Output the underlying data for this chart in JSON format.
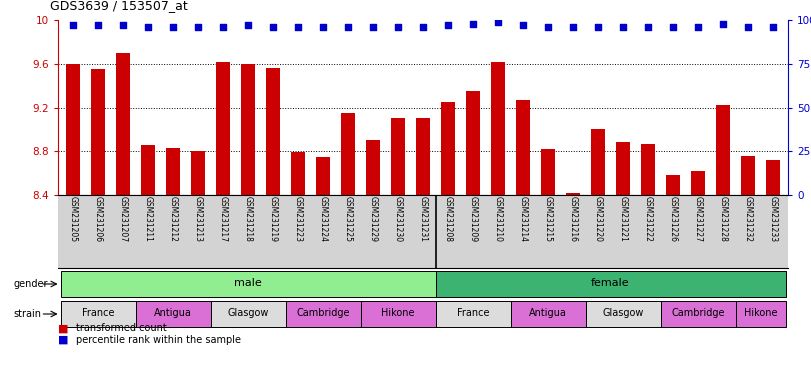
{
  "title": "GDS3639 / 153507_at",
  "samples": [
    "GSM231205",
    "GSM231206",
    "GSM231207",
    "GSM231211",
    "GSM231212",
    "GSM231213",
    "GSM231217",
    "GSM231218",
    "GSM231219",
    "GSM231223",
    "GSM231224",
    "GSM231225",
    "GSM231229",
    "GSM231230",
    "GSM231231",
    "GSM231208",
    "GSM231209",
    "GSM231210",
    "GSM231214",
    "GSM231215",
    "GSM231216",
    "GSM231220",
    "GSM231221",
    "GSM231222",
    "GSM231226",
    "GSM231227",
    "GSM231228",
    "GSM231232",
    "GSM231233"
  ],
  "red_values": [
    9.6,
    9.55,
    9.7,
    8.86,
    8.83,
    8.8,
    9.62,
    9.6,
    9.56,
    8.79,
    8.75,
    9.15,
    8.9,
    9.1,
    9.1,
    9.25,
    9.35,
    9.62,
    9.27,
    8.82,
    8.42,
    9.0,
    8.88,
    8.87,
    8.58,
    8.62,
    9.22,
    8.76,
    8.72
  ],
  "blue_values": [
    97,
    97,
    97,
    96,
    96,
    96,
    96,
    97,
    96,
    96,
    96,
    96,
    96,
    96,
    96,
    97,
    98,
    99,
    97,
    96,
    96,
    96,
    96,
    96,
    96,
    96,
    98,
    96,
    96
  ],
  "ylim_left": [
    8.4,
    10.0
  ],
  "ylim_right": [
    0,
    100
  ],
  "yticks_left": [
    8.4,
    8.8,
    9.2,
    9.6,
    10.0
  ],
  "yticks_right": [
    0,
    25,
    50,
    75,
    100
  ],
  "ytick_labels_left": [
    "8.4",
    "8.8",
    "9.2",
    "9.6",
    "10"
  ],
  "ytick_labels_right": [
    "0",
    "25",
    "50",
    "75",
    "100%"
  ],
  "bar_color": "#CC0000",
  "dot_color": "#0000CC",
  "background_color": "#FFFFFF",
  "tick_color_left": "#CC0000",
  "tick_color_right": "#0000CC",
  "xtick_bg_color": "#D3D3D3",
  "gender_color_male": "#90EE90",
  "gender_color_female": "#3CB371",
  "strain_defs": [
    {
      "label": "France",
      "start": 0,
      "end": 2,
      "color": "#DCDCDC"
    },
    {
      "label": "Antigua",
      "start": 3,
      "end": 5,
      "color": "#DA70D6"
    },
    {
      "label": "Glasgow",
      "start": 6,
      "end": 8,
      "color": "#DCDCDC"
    },
    {
      "label": "Cambridge",
      "start": 9,
      "end": 11,
      "color": "#DA70D6"
    },
    {
      "label": "Hikone",
      "start": 12,
      "end": 14,
      "color": "#DA70D6"
    },
    {
      "label": "France",
      "start": 15,
      "end": 17,
      "color": "#DCDCDC"
    },
    {
      "label": "Antigua",
      "start": 18,
      "end": 20,
      "color": "#DA70D6"
    },
    {
      "label": "Glasgow",
      "start": 21,
      "end": 23,
      "color": "#DCDCDC"
    },
    {
      "label": "Cambridge",
      "start": 24,
      "end": 26,
      "color": "#DA70D6"
    },
    {
      "label": "Hikone",
      "start": 27,
      "end": 28,
      "color": "#DA70D6"
    }
  ],
  "male_separator": 14.5,
  "legend_items": [
    {
      "label": "transformed count",
      "color": "#CC0000"
    },
    {
      "label": "percentile rank within the sample",
      "color": "#0000CC"
    }
  ]
}
